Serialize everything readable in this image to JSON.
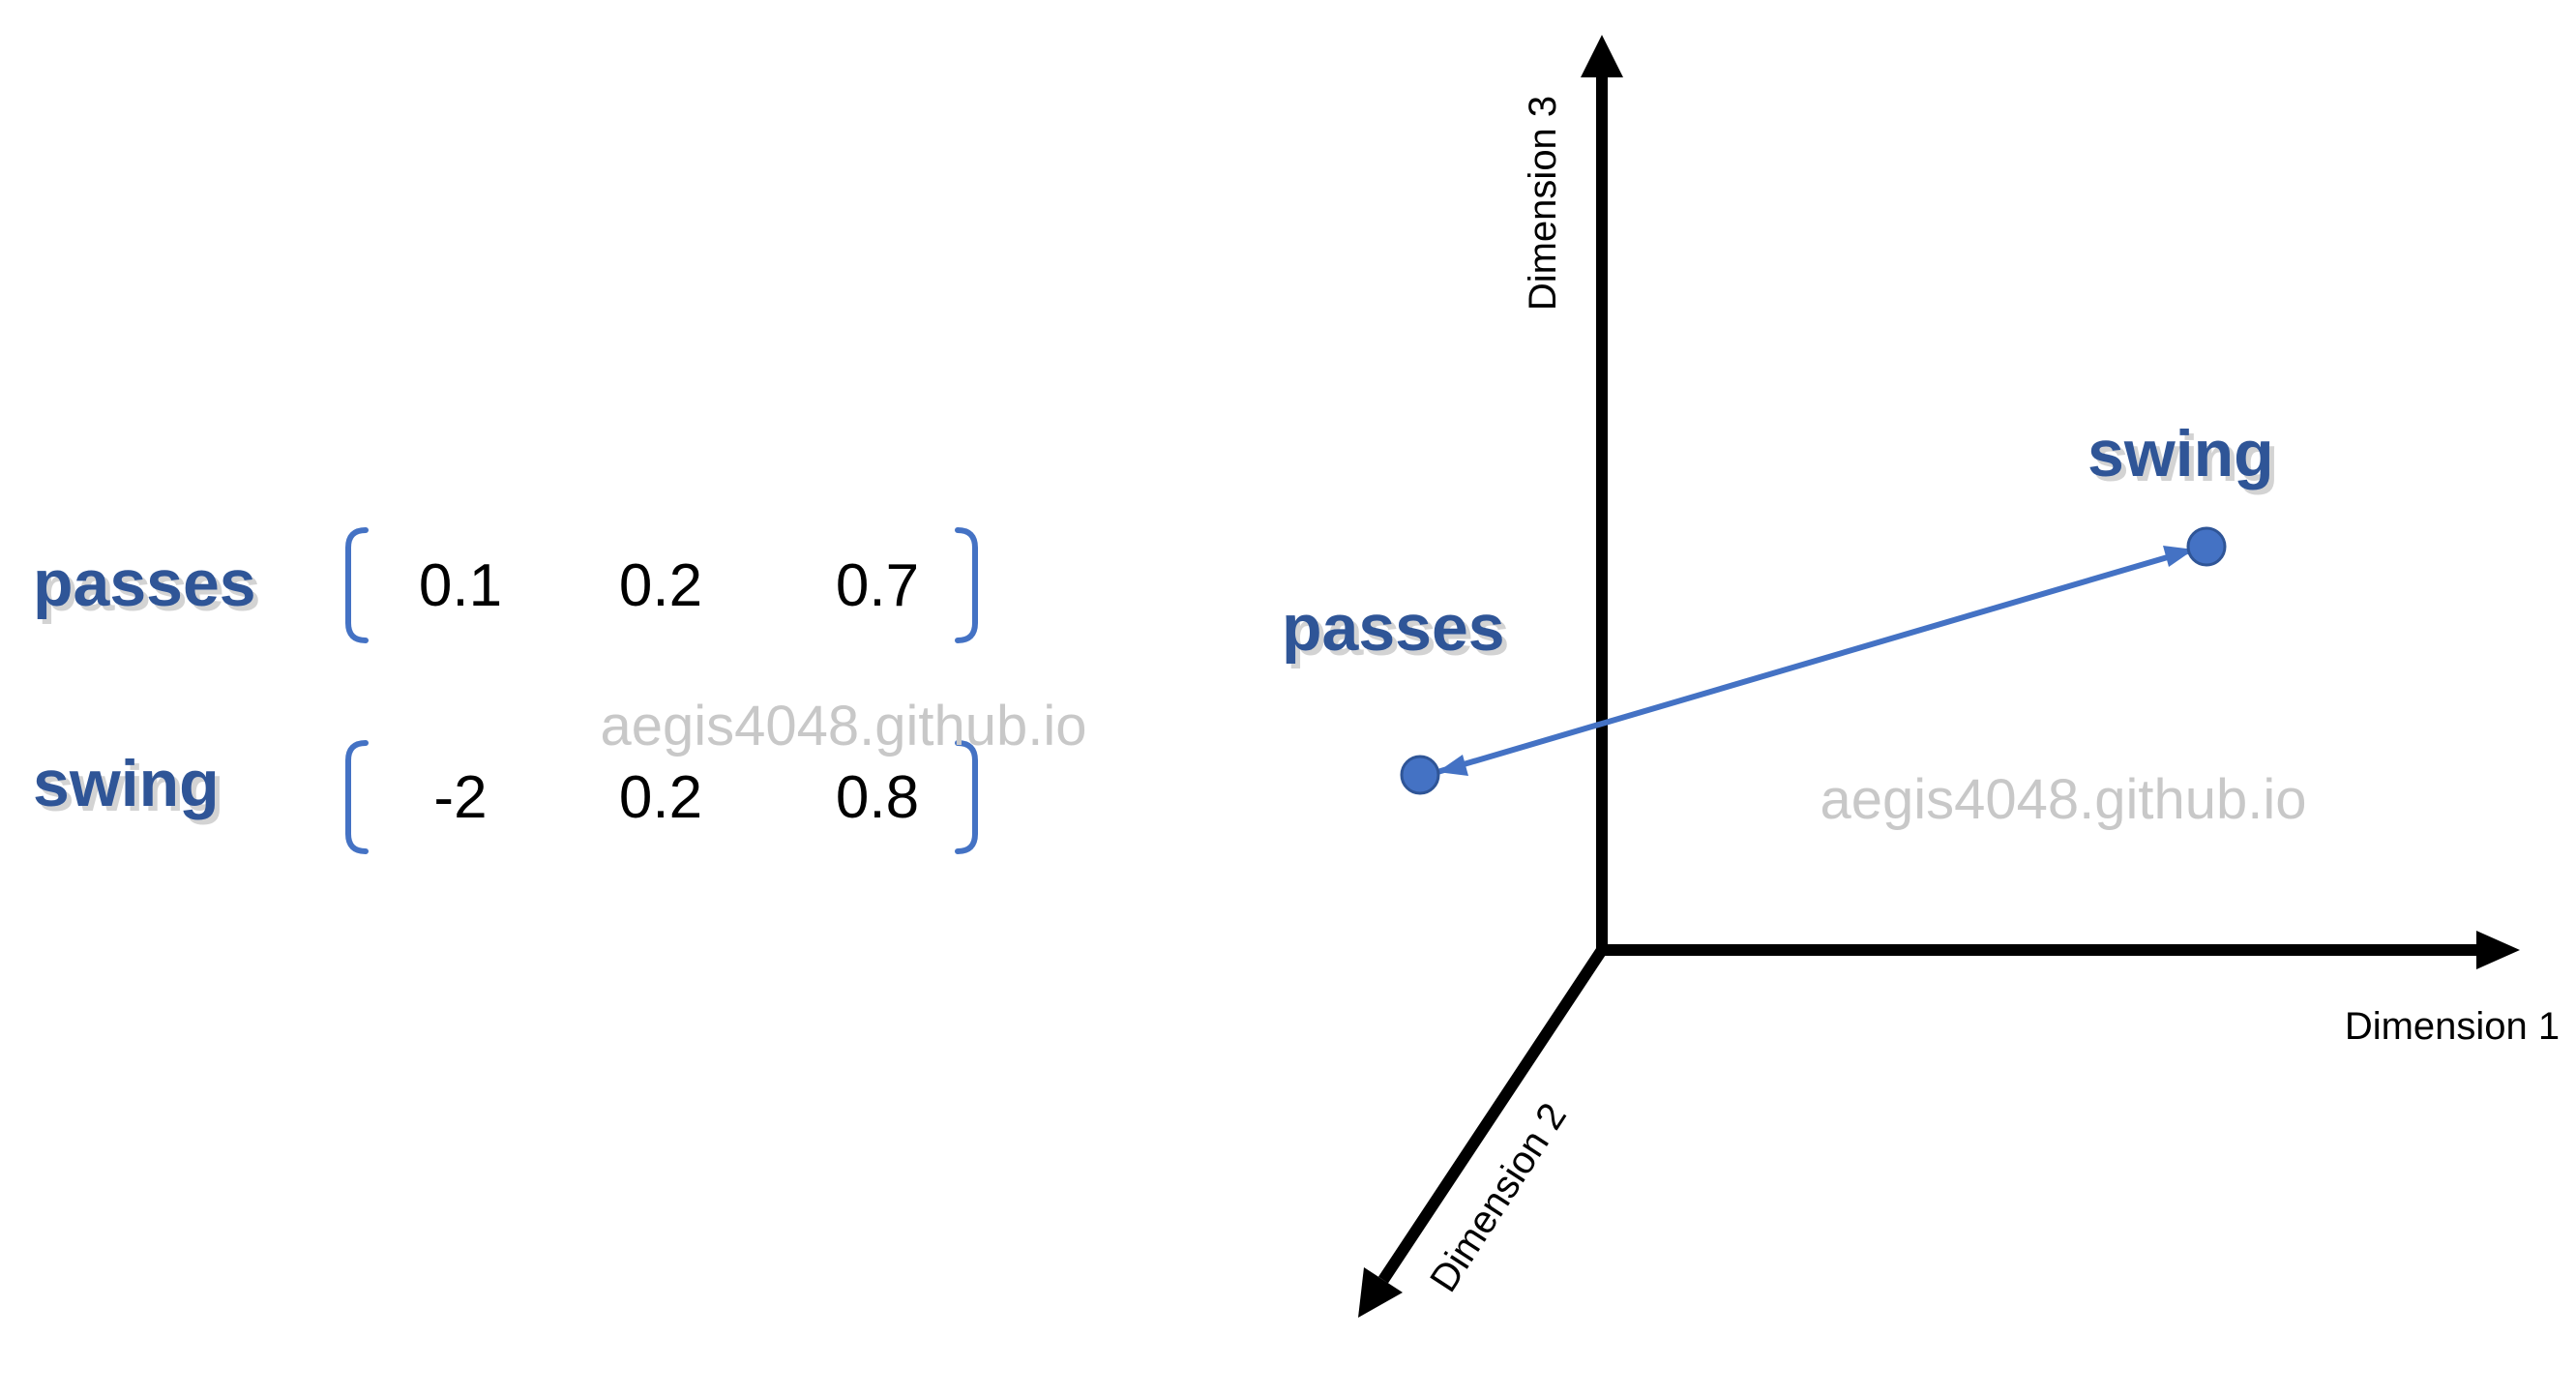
{
  "watermark": "aegis4048.github.io",
  "vectors": [
    {
      "word": "passes",
      "values": [
        "0.1",
        "0.2",
        "0.7"
      ]
    },
    {
      "word": "swing",
      "values": [
        "-2",
        "0.2",
        "0.8"
      ]
    }
  ],
  "axes": {
    "dim1": "Dimension 1",
    "dim2": "Dimension 2",
    "dim3": "Dimension 3"
  },
  "points": {
    "passes": "passes",
    "swing": "swing"
  },
  "colors": {
    "accent": "#4472c4",
    "label": "#2f5597",
    "bracket": "#4472c4",
    "axis": "#000000",
    "watermark": "#c8c8c8"
  }
}
